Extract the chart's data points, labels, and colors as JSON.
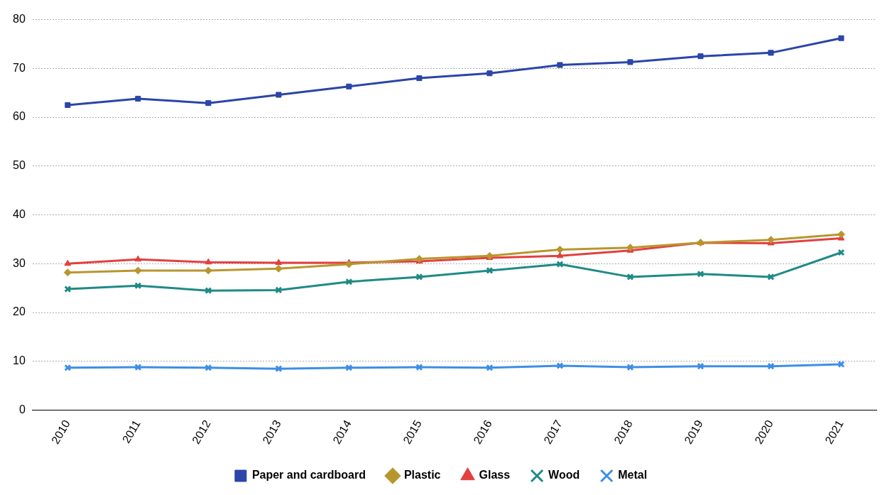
{
  "chart_data": {
    "type": "line",
    "categories": [
      "2010",
      "2011",
      "2012",
      "2013",
      "2014",
      "2015",
      "2016",
      "2017",
      "2018",
      "2019",
      "2020",
      "2021"
    ],
    "ylim": [
      0,
      80
    ],
    "yticks": [
      0,
      10,
      20,
      30,
      40,
      50,
      60,
      70,
      80
    ],
    "grid": "y",
    "legend": "bottom",
    "series": [
      {
        "name": "Paper and cardboard",
        "color": "#2b45a8",
        "marker": "square",
        "values": [
          62.5,
          63.8,
          62.9,
          64.6,
          66.3,
          68.0,
          69.0,
          70.7,
          71.3,
          72.5,
          73.2,
          76.2
        ]
      },
      {
        "name": "Plastic",
        "color": "#b8962e",
        "marker": "diamond",
        "values": [
          28.2,
          28.6,
          28.6,
          29.0,
          29.9,
          31.0,
          31.6,
          32.9,
          33.3,
          34.3,
          34.9,
          36.0
        ]
      },
      {
        "name": "Glass",
        "color": "#e2403f",
        "marker": "triangle",
        "values": [
          30.0,
          30.9,
          30.3,
          30.2,
          30.2,
          30.5,
          31.2,
          31.6,
          32.7,
          34.3,
          34.2,
          35.2
        ]
      },
      {
        "name": "Wood",
        "color": "#1f8a86",
        "marker": "cross",
        "values": [
          24.8,
          25.5,
          24.5,
          24.6,
          26.3,
          27.3,
          28.6,
          29.9,
          27.3,
          27.9,
          27.3,
          32.3
        ]
      },
      {
        "name": "Metal",
        "color": "#3d8fe6",
        "marker": "cross",
        "values": [
          8.7,
          8.8,
          8.7,
          8.5,
          8.7,
          8.8,
          8.7,
          9.1,
          8.8,
          9.0,
          9.0,
          9.4
        ]
      }
    ]
  }
}
